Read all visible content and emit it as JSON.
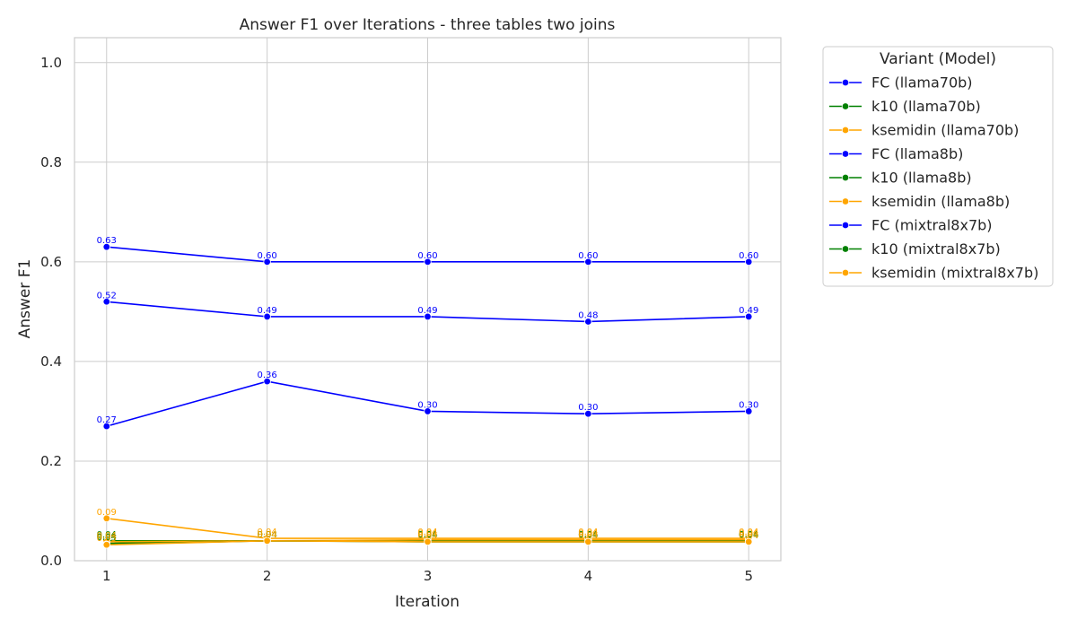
{
  "chart_data": {
    "type": "line",
    "title": "Answer F1 over Iterations - three tables two joins",
    "xlabel": "Iteration",
    "ylabel": "Answer F1",
    "x": [
      1,
      2,
      3,
      4,
      5
    ],
    "xticks": [
      "1",
      "2",
      "3",
      "4",
      "5"
    ],
    "xlim": [
      0.8,
      5.2
    ],
    "ylim": [
      0.0,
      1.05
    ],
    "yticks": [
      "0.0",
      "0.2",
      "0.4",
      "0.6",
      "0.8",
      "1.0"
    ],
    "grid": true,
    "legend": {
      "title": "Variant (Model)",
      "placement": "outside-top-right"
    },
    "series": [
      {
        "name": "FC (llama70b)",
        "color": "#0000ff",
        "values": [
          0.63,
          0.6,
          0.6,
          0.6,
          0.6
        ],
        "labels": [
          "0.63",
          "0.60",
          "0.60",
          "0.60",
          "0.60"
        ]
      },
      {
        "name": "k10 (llama70b)",
        "color": "#008000",
        "values": [
          0.04,
          0.04,
          0.04,
          0.04,
          0.04
        ],
        "labels": [
          "0.04",
          "0.04",
          "0.04",
          "0.04",
          "0.04"
        ]
      },
      {
        "name": "ksemidin (llama70b)",
        "color": "#ffa500",
        "values": [
          0.085,
          0.045,
          0.045,
          0.045,
          0.045
        ],
        "labels": [
          "0.09",
          "0.04",
          "0.04",
          "0.04",
          "0.04"
        ]
      },
      {
        "name": "FC (llama8b)",
        "color": "#0000ff",
        "values": [
          0.52,
          0.49,
          0.49,
          0.48,
          0.49
        ],
        "labels": [
          "0.52",
          "0.49",
          "0.49",
          "0.48",
          "0.49"
        ]
      },
      {
        "name": "k10 (llama8b)",
        "color": "#008000",
        "values": [
          0.035,
          0.04,
          0.04,
          0.04,
          0.04
        ],
        "labels": [
          "0.04",
          "0.04",
          "0.04",
          "0.04",
          "0.04"
        ]
      },
      {
        "name": "ksemidin (llama8b)",
        "color": "#ffa500",
        "values": [
          0.038,
          0.04,
          0.042,
          0.042,
          0.042
        ],
        "labels": [
          "0.04",
          "0.04",
          "0.04",
          "0.04",
          "0.04"
        ]
      },
      {
        "name": "FC (mixtral8x7b)",
        "color": "#0000ff",
        "values": [
          0.27,
          0.36,
          0.3,
          0.295,
          0.3
        ],
        "labels": [
          "0.27",
          "0.36",
          "0.30",
          "0.30",
          "0.30"
        ]
      },
      {
        "name": "k10 (mixtral8x7b)",
        "color": "#008000",
        "values": [
          0.033,
          0.04,
          0.038,
          0.038,
          0.038
        ],
        "labels": [
          "0.03",
          "0.04",
          "0.04",
          "0.04",
          "0.04"
        ]
      },
      {
        "name": "ksemidin (mixtral8x7b)",
        "color": "#ffa500",
        "values": [
          0.032,
          0.04,
          0.038,
          0.038,
          0.038
        ],
        "labels": [
          "0.03",
          "0.04",
          "0.04",
          "0.04",
          "0.04"
        ]
      }
    ]
  }
}
